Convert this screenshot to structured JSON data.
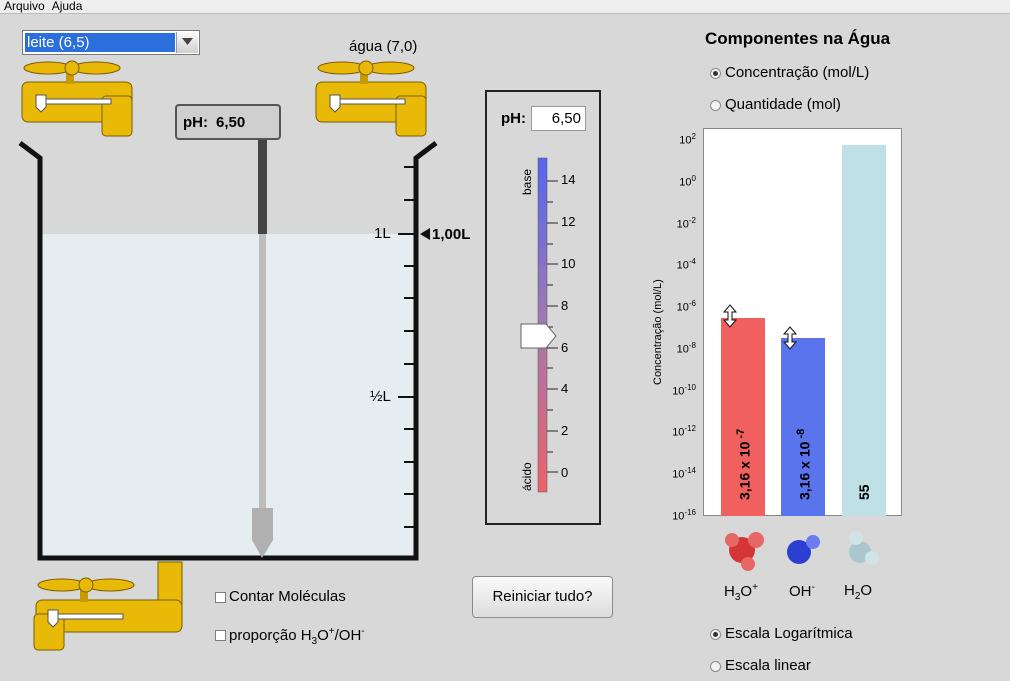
{
  "menu": [
    "Arquivo",
    "Ajuda"
  ],
  "solution": {
    "selected": "leite (6,5)"
  },
  "water_faucet_label": "água (7,0)",
  "probe": {
    "label": "pH:",
    "value": "6,50"
  },
  "beaker": {
    "mark_1l": "1L",
    "mark_half": "½L",
    "volume": "1,00L"
  },
  "meter": {
    "ph_label": "pH:",
    "ph_value": "6,50",
    "base": "base",
    "acid": "ácido",
    "ticks": [
      "14",
      "12",
      "10",
      "8",
      "6",
      "4",
      "2",
      "0"
    ]
  },
  "reset_label": "Reiniciar tudo?",
  "checks": {
    "count_molecules": "Contar Moléculas",
    "ratio_prefix": "proporção H",
    "ratio_sub": "3",
    "ratio_o": "O",
    "ratio_sup": "+",
    "ratio_rest": "/OH",
    "ratio_minus": "-"
  },
  "panel": {
    "title": "Componentes na Água",
    "radio_concentration": "Concentração (mol/L)",
    "radio_quantity": "Quantidade (mol)",
    "radio_log": "Escala Logarítmica",
    "radio_linear": "Escala linear",
    "y_axis": "Concentração (mol/L)"
  },
  "chart_data": {
    "type": "bar",
    "ylabel": "Concentração (mol/L)",
    "scale": "log",
    "ylim": [
      1e-16,
      100.0
    ],
    "yticks_base": "10",
    "yticks_exp": [
      "2",
      "0",
      "-2",
      "-4",
      "-6",
      "-8",
      "-10",
      "-12",
      "-14",
      "-16"
    ],
    "categories": [
      "H3O+",
      "OH-",
      "H2O"
    ],
    "values": [
      3.16e-07,
      3.16e-08,
      55
    ],
    "bar_labels": [
      {
        "mantissa": "3,16 x 10",
        "exp": "-7"
      },
      {
        "mantissa": "3,16 x 10",
        "exp": "-8"
      },
      {
        "mantissa": "55",
        "exp": ""
      }
    ],
    "colors": [
      "#f0605f",
      "#5a74ee",
      "#bfe0e4"
    ]
  },
  "molecules": {
    "h3o": {
      "base": "H",
      "sub": "3",
      "mid": "O",
      "sup": "+"
    },
    "oh": {
      "base": "OH",
      "sup": "-"
    },
    "h2o": {
      "base": "H",
      "sub": "2",
      "mid": "O"
    }
  },
  "colors": {
    "faucet": "#e9b908",
    "liquid": "#e6edf0",
    "select_highlight": "#2a6fdb"
  }
}
